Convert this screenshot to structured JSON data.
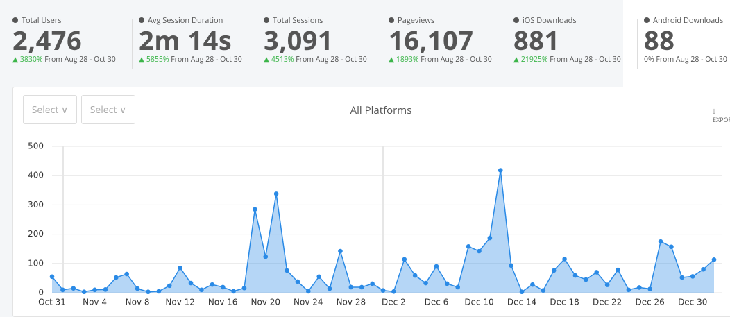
{
  "stats": [
    {
      "label": "Total Users",
      "value": "2,476",
      "change": "3830%",
      "period": "From Aug 28 - Oct 30"
    },
    {
      "label": "Avg Session Duration",
      "value": "2m 14s",
      "change": "5855%",
      "period": "From Aug 28 - Oct 30"
    },
    {
      "label": "Total Sessions",
      "value": "3,091",
      "change": "4513%",
      "period": "From Aug 28 - Oct 30"
    },
    {
      "label": "Pageviews",
      "value": "16,107",
      "change": "1893%",
      "period": "From Aug 28 - Oct 30"
    },
    {
      "label": "iOS Downloads",
      "value": "881",
      "change": "21925%",
      "period": "From Aug 28 - Oct 30"
    },
    {
      "label": "Android Downloads",
      "value": "88",
      "change": "0%",
      "period": "From Aug 28 - Oct 30"
    }
  ],
  "controls": {
    "select1": "Select",
    "select2": "Select",
    "export": "EXPORT"
  },
  "chart_data": {
    "type": "area",
    "title": "All Platforms",
    "categories": [
      "Oct 31",
      null,
      null,
      null,
      "Nov 4",
      null,
      null,
      null,
      "Nov 8",
      null,
      null,
      null,
      "Nov 12",
      null,
      null,
      null,
      "Nov 16",
      null,
      null,
      null,
      "Nov 20",
      null,
      null,
      null,
      "Nov 24",
      null,
      null,
      null,
      "Nov 28",
      null,
      null,
      null,
      "Dec 2",
      null,
      null,
      null,
      "Dec 6",
      null,
      null,
      null,
      "Dec 10",
      null,
      null,
      null,
      "Dec 14",
      null,
      null,
      null,
      "Dec 18",
      null,
      null,
      null,
      "Dec 22",
      null,
      null,
      null,
      "Dec 26",
      null,
      null,
      null,
      "Dec 30",
      null,
      null
    ],
    "series": [
      {
        "name": "All Platforms",
        "color": "#2a8ae6",
        "values": [
          55,
          10,
          15,
          3,
          10,
          11,
          52,
          64,
          14,
          3,
          5,
          24,
          85,
          33,
          10,
          28,
          19,
          5,
          16,
          285,
          123,
          338,
          76,
          38,
          5,
          55,
          14,
          142,
          19,
          19,
          31,
          8,
          4,
          114,
          59,
          33,
          90,
          31,
          19,
          158,
          142,
          187,
          418,
          93,
          3,
          28,
          8,
          76,
          115,
          59,
          45,
          70,
          27,
          78,
          10,
          18,
          13,
          175,
          157,
          52,
          56,
          80,
          113
        ]
      }
    ],
    "ylim": [
      0,
      500
    ],
    "yticks": [
      0,
      100,
      200,
      300,
      400,
      500
    ],
    "grid": true
  }
}
